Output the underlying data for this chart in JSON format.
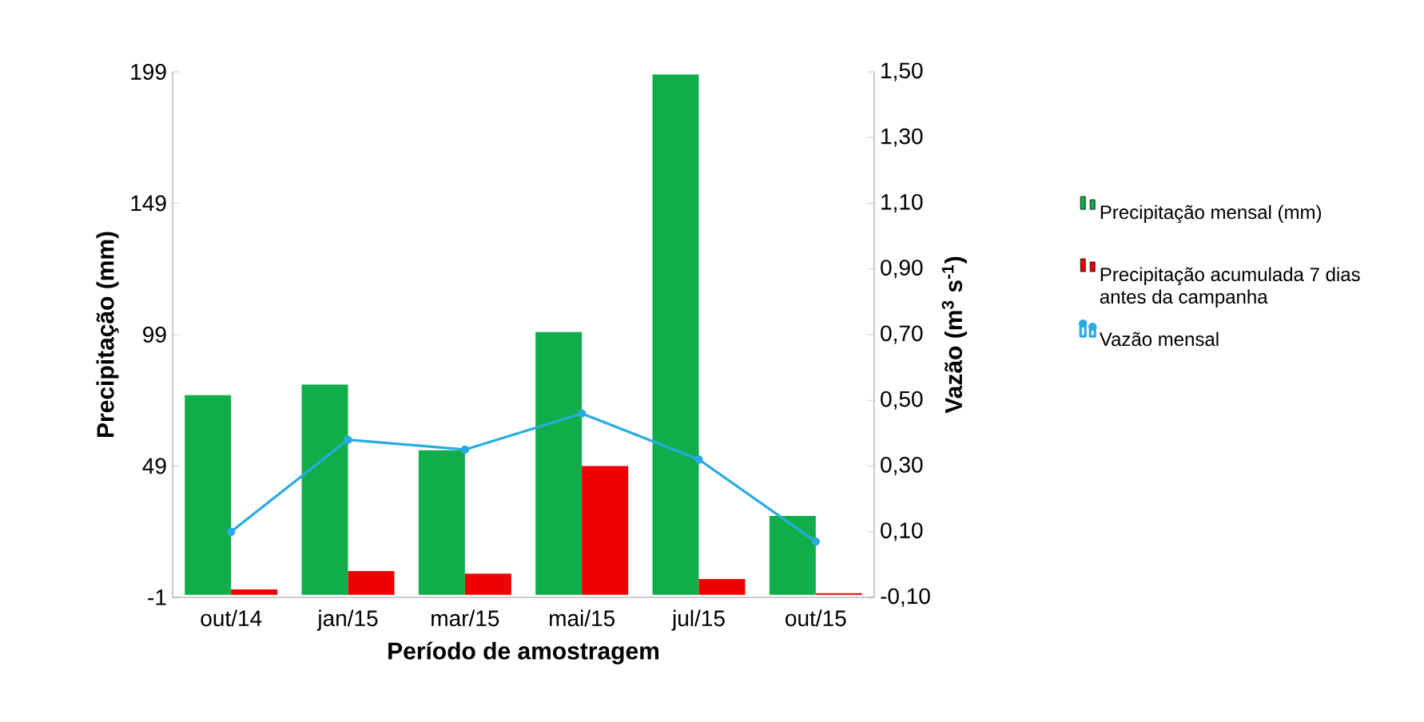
{
  "chart_data": {
    "type": "bar",
    "xlabel": "Período de amostragem",
    "ylabel": "Precipitação (mm)",
    "y2label": "Vazão (m$^{3}$ s$^{-1}$)",
    "categories": [
      "out/14",
      "jan/15",
      "mar/15",
      "mai/15",
      "jul/15",
      "out/15"
    ],
    "series": [
      {
        "name": "Precipitação mensal (mm)",
        "color": "#12ad4b",
        "values": [
          76,
          80,
          55,
          100,
          198,
          30
        ]
      },
      {
        "name": "Precipitação acumulada 7 dias antes da campanha",
        "color": "#ee0000",
        "values": [
          2,
          9,
          8,
          49,
          6,
          0.6
        ]
      },
      {
        "name": "Vazão mensal",
        "type": "line",
        "axis": "y2",
        "color": "#29abe2",
        "marker": "circle",
        "values": [
          0.1,
          0.38,
          0.35,
          0.46,
          0.32,
          0.07
        ]
      }
    ],
    "ylim": [
      -1,
      199
    ],
    "yticks": [
      -1,
      49,
      99,
      149,
      199
    ],
    "y2lim": [
      -0.1,
      1.5
    ],
    "y2ticks": [
      {
        "value": -0.1,
        "label": "-0,10"
      },
      {
        "value": 0.1,
        "label": "0,10"
      },
      {
        "value": 0.3,
        "label": "0,30"
      },
      {
        "value": 0.5,
        "label": "0,50"
      },
      {
        "value": 0.7,
        "label": "0,70"
      },
      {
        "value": 0.9,
        "label": "0,90"
      },
      {
        "value": 1.1,
        "label": "1,10"
      },
      {
        "value": 1.3,
        "label": "1,30"
      },
      {
        "value": 1.5,
        "label": "1,50"
      }
    ],
    "legend": "right",
    "grid": false
  }
}
